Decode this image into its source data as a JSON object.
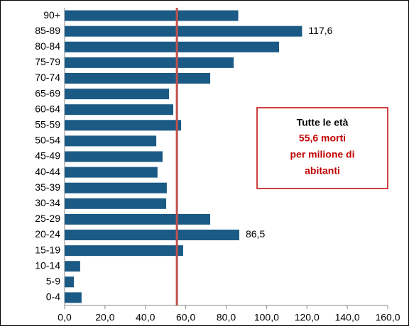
{
  "chart_data": {
    "type": "hbar",
    "categories": [
      "90+",
      "85-89",
      "80-84",
      "75-79",
      "70-74",
      "65-69",
      "60-64",
      "55-59",
      "50-54",
      "45-49",
      "40-44",
      "35-39",
      "30-34",
      "25-29",
      "20-24",
      "15-19",
      "10-14",
      "5-9",
      "0-4"
    ],
    "values": [
      86,
      117.6,
      106.2,
      83.7,
      72.1,
      51.7,
      53.8,
      57.7,
      45.4,
      48.5,
      46,
      50.6,
      50.3,
      72.1,
      86.5,
      58.7,
      7.7,
      4.6,
      8.4
    ],
    "value_labels": [
      null,
      "117,6",
      null,
      null,
      null,
      null,
      null,
      null,
      null,
      null,
      null,
      null,
      null,
      null,
      "86,5",
      null,
      null,
      null,
      null
    ],
    "color": "#1b5a85",
    "xlim": [
      0,
      160
    ],
    "xticks": [
      {
        "value": 0,
        "label": "0,0"
      },
      {
        "value": 20,
        "label": "20,0"
      },
      {
        "value": 40,
        "label": "40,0"
      },
      {
        "value": 60,
        "label": "60,0"
      },
      {
        "value": 80,
        "label": "80,0"
      },
      {
        "value": 100,
        "label": "100,0"
      },
      {
        "value": 120,
        "label": "120,0"
      },
      {
        "value": 140,
        "label": "140,0"
      },
      {
        "value": 160,
        "label": "160,0"
      }
    ],
    "reference_line": {
      "value": 55.6,
      "color": "#c0504d"
    },
    "annotation": {
      "title": "Tutte le età",
      "lines": [
        "55,6 morti",
        "per milione di",
        "abitanti"
      ],
      "color": "#c00000"
    }
  }
}
